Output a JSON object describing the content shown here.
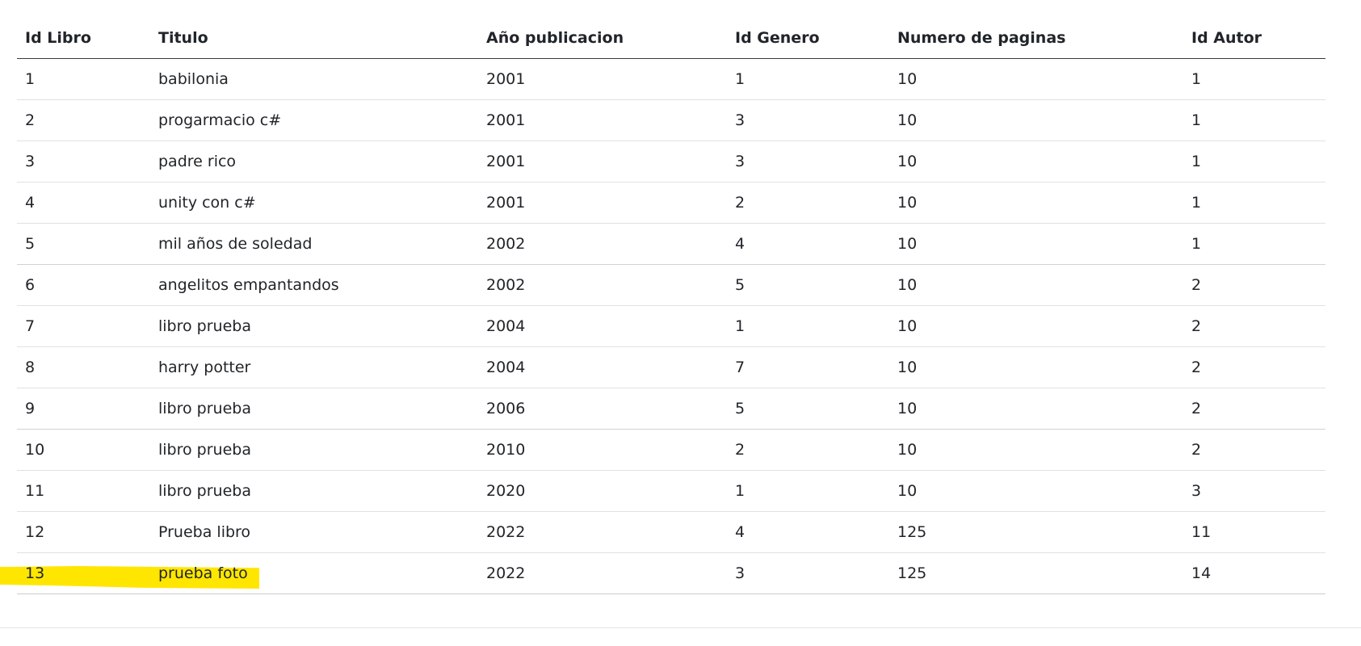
{
  "table": {
    "headers": [
      "Id Libro",
      "Titulo",
      "Año publicacion",
      "Id Genero",
      "Numero de paginas",
      "Id Autor"
    ],
    "rows": [
      [
        "1",
        "babilonia",
        "2001",
        "1",
        "10",
        "1"
      ],
      [
        "2",
        "progarmacio c#",
        "2001",
        "3",
        "10",
        "1"
      ],
      [
        "3",
        "padre rico",
        "2001",
        "3",
        "10",
        "1"
      ],
      [
        "4",
        "unity con c#",
        "2001",
        "2",
        "10",
        "1"
      ],
      [
        "5",
        "mil años de soledad",
        "2002",
        "4",
        "10",
        "1"
      ],
      [
        "6",
        "angelitos empantandos",
        "2002",
        "5",
        "10",
        "2"
      ],
      [
        "7",
        "libro prueba",
        "2004",
        "1",
        "10",
        "2"
      ],
      [
        "8",
        "harry potter",
        "2004",
        "7",
        "10",
        "2"
      ],
      [
        "9",
        "libro prueba",
        "2006",
        "5",
        "10",
        "2"
      ],
      [
        "10",
        "libro prueba",
        "2010",
        "2",
        "10",
        "2"
      ],
      [
        "11",
        "libro prueba",
        "2020",
        "1",
        "10",
        "3"
      ],
      [
        "12",
        "Prueba libro",
        "2022",
        "4",
        "125",
        "11"
      ],
      [
        "13",
        "prueba foto",
        "2022",
        "3",
        "125",
        "14"
      ]
    ]
  },
  "colors": {
    "highlight": "#ffe600",
    "text": "#212529",
    "row_border": "#dee2e6",
    "header_border": "#3a3a3a"
  }
}
